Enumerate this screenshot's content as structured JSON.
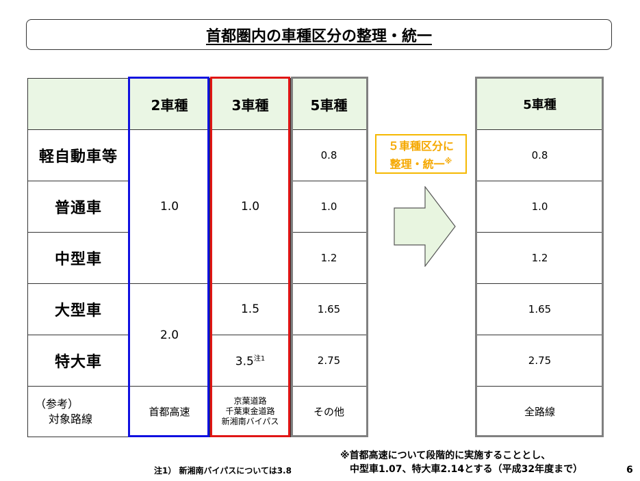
{
  "title": "首都圏内の車種区分の整理・統一",
  "left_table": {
    "headers": [
      "",
      "2車種",
      "3車種",
      "5車種"
    ],
    "row_labels": [
      "軽自動車等",
      "普通車",
      "中型車",
      "大型車",
      "特大車"
    ],
    "ref_label_line1": "（参考）",
    "ref_label_line2": "対象路線",
    "col2": {
      "light": "1.0",
      "heavy": "2.0",
      "route": "首都高速"
    },
    "col3": {
      "light": "1.0",
      "large": "1.5",
      "xl": "3.5",
      "xl_note": "注1",
      "route_lines": [
        "京葉道路",
        "千葉東金道路",
        "新湘南バイパス"
      ]
    },
    "col5": {
      "values": [
        "0.8",
        "1.0",
        "1.2",
        "1.65",
        "2.75"
      ],
      "route": "その他"
    }
  },
  "callout": {
    "line1": "５車種区分に",
    "line2": "整理・統一",
    "mark": "※"
  },
  "right_table": {
    "header": "5車種",
    "values": [
      "0.8",
      "1.0",
      "1.2",
      "1.65",
      "2.75"
    ],
    "route": "全路線"
  },
  "notes": {
    "right_line1": "※首都高速について段階的に実施することとし、",
    "right_line2": "中型車1.07、特大車2.14とする（平成32年度まで）",
    "left": "注1）  新湘南バイパスについては3.8"
  },
  "page_number": "6",
  "colors": {
    "header_bg": "#eaf6e4",
    "blue_frame": "#1010e0",
    "red_frame": "#e01515",
    "gray_frame": "#808080",
    "callout": "#f5b800",
    "arrow_fill": "#e8f5e0"
  }
}
